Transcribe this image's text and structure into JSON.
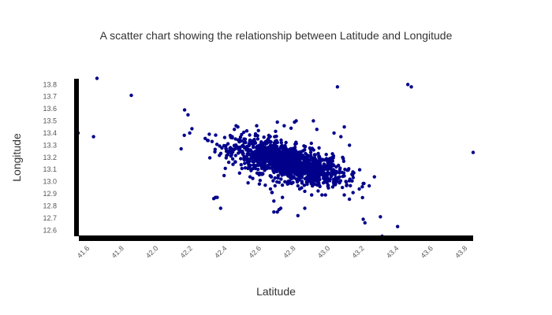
{
  "colors": {
    "point": "#00008b",
    "axis": "#000000",
    "text": "#333333",
    "background": "#ffffff"
  },
  "chart_data": {
    "type": "scatter",
    "title": "A scatter chart showing the relationship between Latitude and Longitude",
    "xlabel": "Latitude",
    "ylabel": "Longitude",
    "xlim": [
      41.56,
      43.86
    ],
    "ylim": [
      12.55,
      13.86
    ],
    "grid": false,
    "legend": "none",
    "x_ticks": [
      "41.6",
      "41.8",
      "42.0",
      "42.2",
      "42.4",
      "42.6",
      "42.8",
      "43.0",
      "43.2",
      "43.4",
      "43.6",
      "43.8"
    ],
    "y_ticks": [
      "13.8",
      "13.7",
      "13.6",
      "13.5",
      "13.4",
      "13.3",
      "13.2",
      "13.1",
      "13.0",
      "12.9",
      "12.8",
      "12.7",
      "12.6"
    ],
    "dense_cluster": {
      "description": "thousands of overlapping points",
      "x_center": 42.78,
      "y_center": 13.16,
      "x_spread": 0.16,
      "y_spread": 0.07,
      "count": 1400
    },
    "points": [
      {
        "x": 41.56,
        "y": 13.4
      },
      {
        "x": 41.65,
        "y": 13.37
      },
      {
        "x": 41.67,
        "y": 13.85
      },
      {
        "x": 41.87,
        "y": 13.71
      },
      {
        "x": 42.16,
        "y": 13.27
      },
      {
        "x": 42.18,
        "y": 13.59
      },
      {
        "x": 42.2,
        "y": 13.55
      },
      {
        "x": 42.21,
        "y": 13.4
      },
      {
        "x": 42.34,
        "y": 13.33
      },
      {
        "x": 42.35,
        "y": 12.86
      },
      {
        "x": 42.36,
        "y": 12.87
      },
      {
        "x": 42.37,
        "y": 12.87
      },
      {
        "x": 42.39,
        "y": 12.78
      },
      {
        "x": 42.41,
        "y": 13.05
      },
      {
        "x": 42.43,
        "y": 13.25
      },
      {
        "x": 42.45,
        "y": 13.21
      },
      {
        "x": 42.47,
        "y": 13.43
      },
      {
        "x": 42.48,
        "y": 13.46
      },
      {
        "x": 42.49,
        "y": 13.45
      },
      {
        "x": 42.5,
        "y": 13.07
      },
      {
        "x": 42.52,
        "y": 13.3
      },
      {
        "x": 42.55,
        "y": 12.99
      },
      {
        "x": 42.6,
        "y": 13.46
      },
      {
        "x": 42.61,
        "y": 13.42
      },
      {
        "x": 42.62,
        "y": 13.01
      },
      {
        "x": 42.63,
        "y": 13.06
      },
      {
        "x": 42.65,
        "y": 12.97
      },
      {
        "x": 42.67,
        "y": 13.38
      },
      {
        "x": 42.68,
        "y": 12.94
      },
      {
        "x": 42.69,
        "y": 12.91
      },
      {
        "x": 42.7,
        "y": 12.84
      },
      {
        "x": 42.7,
        "y": 12.75
      },
      {
        "x": 42.72,
        "y": 12.75
      },
      {
        "x": 42.73,
        "y": 12.77
      },
      {
        "x": 42.74,
        "y": 12.78
      },
      {
        "x": 42.75,
        "y": 12.87
      },
      {
        "x": 42.72,
        "y": 13.49
      },
      {
        "x": 42.76,
        "y": 13.46
      },
      {
        "x": 42.78,
        "y": 12.98
      },
      {
        "x": 42.8,
        "y": 13.44
      },
      {
        "x": 42.82,
        "y": 13.49
      },
      {
        "x": 42.83,
        "y": 13.5
      },
      {
        "x": 42.84,
        "y": 12.72
      },
      {
        "x": 42.85,
        "y": 12.94
      },
      {
        "x": 42.88,
        "y": 12.78
      },
      {
        "x": 42.88,
        "y": 12.92
      },
      {
        "x": 42.92,
        "y": 12.89
      },
      {
        "x": 42.93,
        "y": 13.5
      },
      {
        "x": 42.95,
        "y": 13.43
      },
      {
        "x": 42.96,
        "y": 13.03
      },
      {
        "x": 42.98,
        "y": 12.89
      },
      {
        "x": 43.0,
        "y": 12.89
      },
      {
        "x": 43.05,
        "y": 13.4
      },
      {
        "x": 43.07,
        "y": 13.78
      },
      {
        "x": 43.09,
        "y": 13.37
      },
      {
        "x": 43.1,
        "y": 13.2
      },
      {
        "x": 43.11,
        "y": 13.45
      },
      {
        "x": 43.11,
        "y": 12.89
      },
      {
        "x": 43.14,
        "y": 13.3
      },
      {
        "x": 43.16,
        "y": 13.08
      },
      {
        "x": 43.22,
        "y": 12.69
      },
      {
        "x": 43.23,
        "y": 12.66
      },
      {
        "x": 43.32,
        "y": 12.71
      },
      {
        "x": 43.33,
        "y": 12.55
      },
      {
        "x": 43.34,
        "y": 12.54
      },
      {
        "x": 43.42,
        "y": 12.63
      },
      {
        "x": 43.48,
        "y": 13.8
      },
      {
        "x": 43.5,
        "y": 13.78
      },
      {
        "x": 43.86,
        "y": 13.24
      }
    ]
  }
}
